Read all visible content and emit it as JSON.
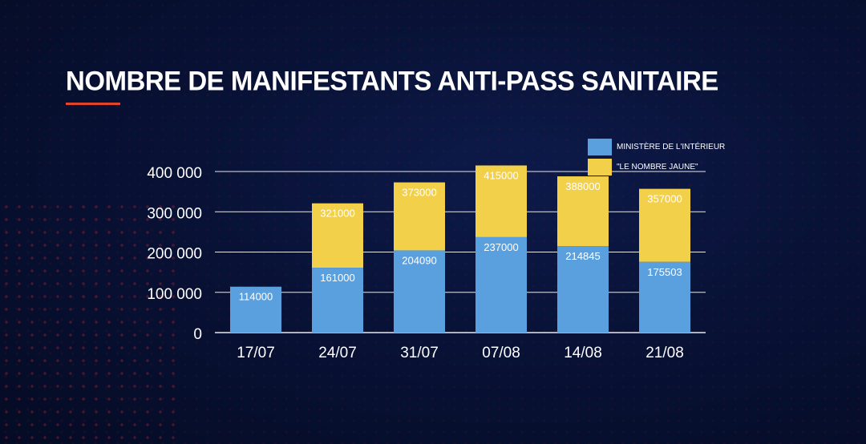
{
  "chart_data": {
    "type": "bar",
    "stacked": true,
    "title": "NOMBRE DE MANIFESTANTS ANTI-PASS SANITAIRE",
    "categories": [
      "17/07",
      "24/07",
      "31/07",
      "07/08",
      "14/08",
      "21/08"
    ],
    "series": [
      {
        "name": "MINISTÈRE DE L'INTÉRIEUR",
        "color": "#5aa0df",
        "values": [
          114000,
          161000,
          204090,
          237000,
          214845,
          175503
        ],
        "labels": [
          "114000",
          "161000",
          "204090",
          "237000",
          "214845",
          "175503"
        ]
      },
      {
        "name": "\"LE NOMBRE JAUNE\"",
        "color": "#f3d04a",
        "totals": [
          null,
          321000,
          373000,
          415000,
          388000,
          357000
        ],
        "labels": [
          "",
          "321000",
          "373000",
          "415000",
          "388000",
          "357000"
        ]
      }
    ],
    "yticks": [
      "0",
      "100 000",
      "200 000",
      "300 000",
      "400 000"
    ],
    "ytick_values": [
      0,
      100000,
      200000,
      300000,
      400000
    ],
    "ylim": [
      0,
      400000
    ],
    "grid": true,
    "legend_position": "top-right"
  }
}
